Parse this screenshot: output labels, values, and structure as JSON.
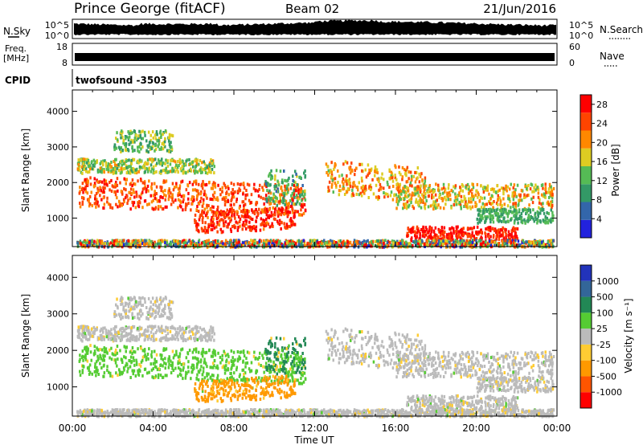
{
  "header": {
    "station": "Prince George (fitACF)",
    "beam": "Beam 02",
    "date": "21/Jun/2016"
  },
  "strips": {
    "nsky_label": "N.Sky",
    "nsky_ticks": [
      "10^5",
      "10^0"
    ],
    "nsearch_label": "N.Search",
    "nsearch_ticks": [
      "10^5",
      "10^0"
    ],
    "freq_label_1": "Freq.",
    "freq_label_2": "[MHz]",
    "freq_ticks": [
      "18",
      "8"
    ],
    "nave_label": "Nave",
    "nave_ticks": [
      "60",
      "0"
    ],
    "cpid_label": "CPID",
    "cpid_value": "twofsound -3503"
  },
  "colors": {
    "power_scale": [
      "#2222dd",
      "#3366aa",
      "#339966",
      "#55bb55",
      "#ddcc22",
      "#ff8800",
      "#ff4400",
      "#ff0000"
    ],
    "velocity_scale": [
      "#2233bb",
      "#336699",
      "#228855",
      "#55cc33",
      "#bbbbbb",
      "#ffcc33",
      "#ff9900",
      "#ff5500",
      "#ff0000"
    ]
  },
  "chart_data": [
    {
      "type": "heatmap",
      "panel": "power",
      "ylabel": "Slant Range [km]",
      "xlabel": "Time UT",
      "x_ticks": [
        "00:00",
        "04:00",
        "08:00",
        "12:00",
        "16:00",
        "20:00",
        "00:00"
      ],
      "y_ticks": [
        1000,
        2000,
        3000,
        4000
      ],
      "ylim": [
        200,
        4600
      ],
      "xlim_hours": [
        0,
        24
      ],
      "colorbar_label": "Power [dB]",
      "colorbar_ticks": [
        4,
        8,
        12,
        16,
        20,
        24,
        28
      ],
      "colorbar_range": [
        0,
        30
      ]
    },
    {
      "type": "heatmap",
      "panel": "velocity",
      "ylabel": "Slant Range [km]",
      "xlabel": "Time UT",
      "x_ticks": [
        "00:00",
        "04:00",
        "08:00",
        "12:00",
        "16:00",
        "20:00",
        "00:00"
      ],
      "y_ticks": [
        1000,
        2000,
        3000,
        4000
      ],
      "ylim": [
        200,
        4600
      ],
      "xlim_hours": [
        0,
        24
      ],
      "colorbar_label": "Velocity [m s⁻¹]",
      "colorbar_ticks": [
        "1000",
        "500",
        "100",
        "25",
        "-25",
        "-100",
        "-500",
        "-1000"
      ]
    }
  ]
}
